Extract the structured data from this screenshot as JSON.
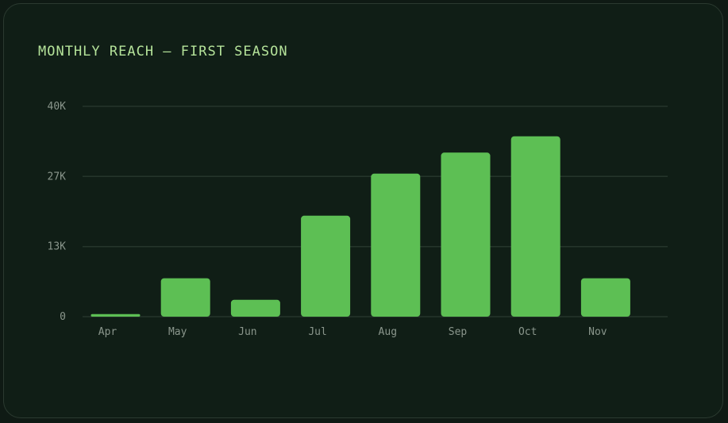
{
  "chart_data": {
    "type": "bar",
    "title": "MONTHLY REACH — FIRST SEASON",
    "xlabel": "",
    "ylabel": "",
    "categories": [
      "Apr",
      "May",
      "Jun",
      "Jul",
      "Aug",
      "Sep",
      "Oct",
      "Nov"
    ],
    "values": [
      0.5,
      7.3,
      3.2,
      19.2,
      27.2,
      31.2,
      34.3,
      7.3
    ],
    "value_unit": "K",
    "ylim": [
      0,
      40
    ],
    "y_ticks": [
      {
        "value": 0,
        "label": "0"
      },
      {
        "value": 13.33,
        "label": "13K"
      },
      {
        "value": 26.67,
        "label": "27K"
      },
      {
        "value": 40,
        "label": "40K"
      }
    ],
    "grid": true,
    "legend": "none",
    "colors": {
      "bar": "#5dbf54",
      "grid": "#25352b",
      "title": "#b5e39a",
      "tick_text": "#8a968c",
      "card_background": "#101e16",
      "page_background": "#0f1a14"
    }
  }
}
